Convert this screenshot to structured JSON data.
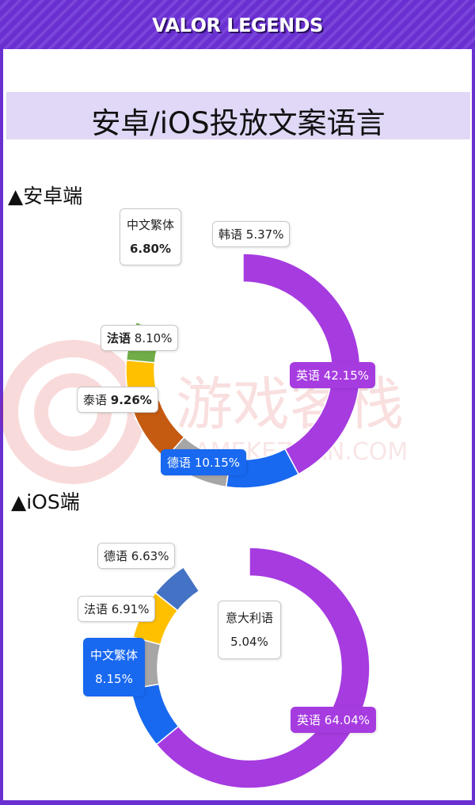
{
  "header": {
    "title": "VALOR LEGENDS"
  },
  "page": {
    "title": "安卓/iOS投放文案语言"
  },
  "watermark": {
    "text": "游戏客栈",
    "sub": "GAMEKEZHAN.COM"
  },
  "sections": {
    "android": {
      "label": "▲安卓端"
    },
    "ios": {
      "label": "▲iOS端"
    }
  },
  "chart_data": [
    {
      "type": "pie",
      "variant": "donut",
      "name": "android",
      "unit": "%",
      "slices": [
        {
          "label": "英语",
          "value": 42.15,
          "color": "#a63be0",
          "display": "42.15%"
        },
        {
          "label": "德语",
          "value": 10.15,
          "color": "#1868f0",
          "display": "10.15%"
        },
        {
          "label": "泰语",
          "value": 9.26,
          "color": "#a6a6a6",
          "display": "9.26%"
        },
        {
          "label": "法语",
          "value": 8.1,
          "color": "#c55a11",
          "display": "8.10%"
        },
        {
          "label": "中文繁体",
          "value": 6.8,
          "color": "#ffc000",
          "display": "6.80%"
        },
        {
          "label": "韩语",
          "value": 5.37,
          "color": "#70ad47",
          "display": "5.37%"
        }
      ]
    },
    {
      "type": "pie",
      "variant": "donut",
      "name": "ios",
      "unit": "%",
      "slices": [
        {
          "label": "英语",
          "value": 64.04,
          "color": "#a63be0",
          "display": "64.04%"
        },
        {
          "label": "中文繁体",
          "value": 8.15,
          "color": "#1868f0",
          "display": "8.15%"
        },
        {
          "label": "法语",
          "value": 6.91,
          "color": "#a6a6a6",
          "display": "6.91%"
        },
        {
          "label": "德语",
          "value": 6.63,
          "color": "#ffc000",
          "display": "6.63%"
        },
        {
          "label": "意大利语",
          "value": 5.04,
          "color": "#4472c4",
          "display": "5.04%"
        }
      ]
    }
  ]
}
